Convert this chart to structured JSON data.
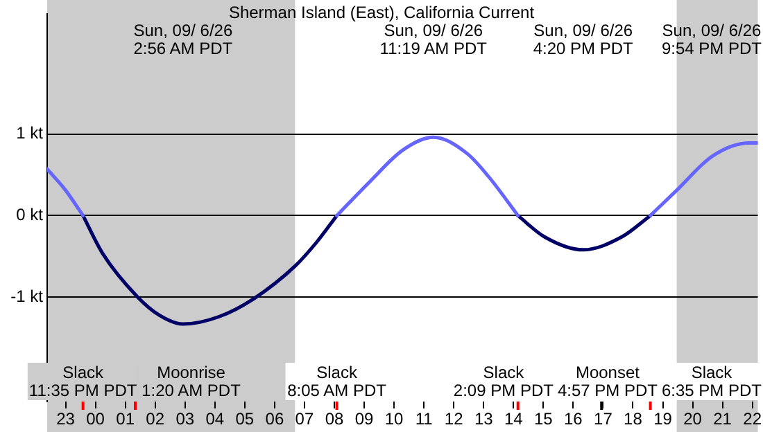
{
  "chart_data": {
    "type": "line",
    "title": "Sherman Island (East), California Current",
    "x": [
      "--09-05T22:23",
      "--09-05T23:00",
      "--09-05T23:35",
      "--09-06T00:14",
      "--09-06T01:25",
      "--09-06T02:08",
      "--09-06T02:56",
      "--09-06T04:08",
      "--09-06T05:18",
      "--09-06T06:41",
      "--09-06T07:24",
      "--09-06T08:05",
      "--09-06T09:12",
      "--09-06T10:17",
      "--09-06T11:19",
      "--09-06T12:27",
      "--09-06T13:11",
      "--09-06T14:09",
      "--09-06T15:02",
      "--09-06T16:20",
      "--09-06T17:38",
      "--09-06T18:35",
      "--09-06T19:28",
      "--09-06T20:40",
      "--09-06T21:54",
      "--09-06T22:11"
    ],
    "series": [
      {
        "color": "#6666ff",
        "values": [
          0.57,
          0.31,
          0,
          null,
          null,
          null,
          null,
          null,
          null,
          null,
          null,
          0,
          0.42,
          0.8,
          0.96,
          0.76,
          0.47,
          0,
          null,
          null,
          null,
          0,
          0.31,
          0.73,
          0.89,
          0.89
        ]
      },
      {
        "color": "#000066",
        "values": [
          null,
          null,
          0,
          -0.46,
          -1.0,
          -1.22,
          -1.33,
          -1.24,
          -1.02,
          -0.62,
          -0.33,
          0,
          null,
          null,
          null,
          null,
          null,
          0,
          -0.26,
          -0.42,
          -0.26,
          0,
          null,
          null,
          null,
          null
        ]
      }
    ],
    "xlim": [
      "--09-05T22:23",
      "--09-06T22:11"
    ],
    "xticks": [
      {
        "value": "--09-05T23:00",
        "label": "23"
      },
      {
        "value": "--09-06T00:00",
        "label": "00"
      },
      {
        "value": "--09-06T01:00",
        "label": "01"
      },
      {
        "value": "--09-06T02:00",
        "label": "02"
      },
      {
        "value": "--09-06T03:00",
        "label": "03"
      },
      {
        "value": "--09-06T04:00",
        "label": "04"
      },
      {
        "value": "--09-06T05:00",
        "label": "05"
      },
      {
        "value": "--09-06T06:00",
        "label": "06"
      },
      {
        "value": "--09-06T07:00",
        "label": "07"
      },
      {
        "value": "--09-06T08:00",
        "label": "08"
      },
      {
        "value": "--09-06T09:00",
        "label": "09"
      },
      {
        "value": "--09-06T10:00",
        "label": "10"
      },
      {
        "value": "--09-06T11:00",
        "label": "11"
      },
      {
        "value": "--09-06T12:00",
        "label": "12"
      },
      {
        "value": "--09-06T13:00",
        "label": "13"
      },
      {
        "value": "--09-06T14:00",
        "label": "14"
      },
      {
        "value": "--09-06T15:00",
        "label": "15"
      },
      {
        "value": "--09-06T16:00",
        "label": "16"
      },
      {
        "value": "--09-06T17:00",
        "label": "17"
      },
      {
        "value": "--09-06T18:00",
        "label": "18"
      },
      {
        "value": "--09-06T19:00",
        "label": "19"
      },
      {
        "value": "--09-06T20:00",
        "label": "20"
      },
      {
        "value": "--09-06T21:00",
        "label": "21"
      },
      {
        "value": "--09-06T22:00",
        "label": "22"
      }
    ],
    "ylim": [
      -2.28,
      2.47
    ],
    "yticks": [
      {
        "value": -1,
        "label": "-1 kt"
      },
      {
        "value": 0,
        "label": "0 kt"
      },
      {
        "value": 1,
        "label": "1 kt"
      }
    ],
    "grid": "y",
    "legend": false,
    "marker": "none",
    "bands": [
      {
        "axis": "x",
        "from": "--09-05T22:23",
        "to": "--09-06T06:41",
        "color": "#cccccc"
      },
      {
        "axis": "x",
        "from": "--09-06T19:28",
        "to": "--09-06T22:11",
        "color": "#cccccc"
      }
    ],
    "ref_lines": [
      {
        "axis": "x",
        "value": "--09-05T23:35",
        "label": "Slack\n11:35 PM PDT",
        "color": "#ff0000"
      },
      {
        "axis": "x",
        "value": "--09-06T01:20",
        "label": "Moonrise\n1:20 AM PDT",
        "color": "#ff0000"
      },
      {
        "axis": "x",
        "value": "--09-06T08:05",
        "label": "Slack\n8:05 AM PDT",
        "color": "#ff0000"
      },
      {
        "axis": "x",
        "value": "--09-06T14:09",
        "label": "Slack\n2:09 PM PDT",
        "color": "#ff0000"
      },
      {
        "axis": "x",
        "value": "--09-06T16:57",
        "label": "Moonset\n4:57 PM PDT",
        "color": "#000000"
      },
      {
        "axis": "x",
        "value": "--09-06T18:35",
        "label": "Slack\n6:35 PM PDT",
        "color": "#ff0000"
      }
    ],
    "annotations": [
      "Sun, 09/ 6/26\n2:56 AM PDT",
      "Sun, 09/ 6/26\n11:19 AM PDT",
      "Sun, 09/ 6/26\n4:20 PM PDT",
      "Sun, 09/ 6/26\n9:54 PM PDT"
    ]
  }
}
